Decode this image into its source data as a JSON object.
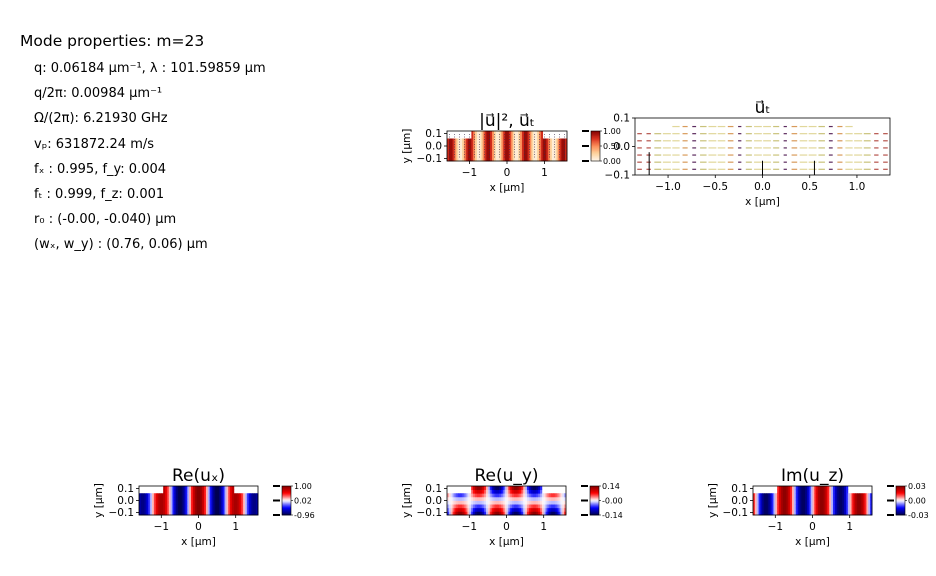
{
  "properties": {
    "title": "Mode properties: m=23",
    "lines": [
      "q: 0.06184 μm⁻¹, λ :  101.59859 μm",
      "q/2π: 0.00984 μm⁻¹",
      "Ω/(2π): 6.21930 GHz",
      "vₚ: 631872.24 m/s",
      "fₓ :  0.995, f_y: 0.004",
      "fₜ :  0.999, f_z: 0.001",
      "r₀ :  (-0.00, -0.040) μm",
      "(wₓ, w_y) :  (0.76, 0.06) μm"
    ]
  },
  "chart_data": [
    {
      "type": "heatmap",
      "title": "|u⃗|²,  u⃗ₜ",
      "xlabel": "x [μm]",
      "ylabel": "y [μm]",
      "xlim": [
        -1.6,
        1.6
      ],
      "ylim": [
        -0.12,
        0.12
      ],
      "xticks": [
        -1,
        0,
        1
      ],
      "yticks": [
        0.1,
        0.0,
        -0.1
      ],
      "xtick_labels": [
        "−1",
        "0",
        "1"
      ],
      "ytick_labels": [
        "0.1",
        "0.0",
        "−0.1"
      ],
      "colormap": "OrRd",
      "colorbar_ticks": [
        "1.00",
        "0.50",
        "0.00"
      ],
      "colorbar_range": [
        0.0,
        1.0
      ],
      "overlay": "quiver"
    },
    {
      "type": "scatter",
      "title": "u⃗ₜ",
      "xlabel": "x [μm]",
      "xlim": [
        -1.35,
        1.35
      ],
      "ylim": [
        -0.1,
        0.1
      ],
      "xticks": [
        -1.0,
        -0.5,
        0.0,
        0.5,
        1.0
      ],
      "yticks": [
        0.1,
        0.0,
        -0.1
      ],
      "xtick_labels": [
        "−1.0",
        "−0.5",
        "0.0",
        "0.5",
        "1.0"
      ],
      "ytick_labels": [
        "0.1",
        "0.0",
        "−0.1"
      ],
      "overlay": "quiver"
    },
    {
      "type": "heatmap",
      "title": "Re(uₓ)",
      "xlabel": "x [μm]",
      "ylabel": "y [μm]",
      "xlim": [
        -1.6,
        1.6
      ],
      "ylim": [
        -0.12,
        0.12
      ],
      "xticks": [
        -1,
        0,
        1
      ],
      "yticks": [
        0.1,
        0.0,
        -0.1
      ],
      "xtick_labels": [
        "−1",
        "0",
        "1"
      ],
      "ytick_labels": [
        "0.1",
        "0.0",
        "−0.1"
      ],
      "colormap": "seismic",
      "colorbar_ticks": [
        "1.00",
        "0.02",
        "-0.96"
      ],
      "colorbar_range": [
        -0.96,
        1.0
      ]
    },
    {
      "type": "heatmap",
      "title": "Re(u_y)",
      "xlabel": "x [μm]",
      "ylabel": "y [μm]",
      "xlim": [
        -1.6,
        1.6
      ],
      "ylim": [
        -0.12,
        0.12
      ],
      "xticks": [
        -1,
        0,
        1
      ],
      "yticks": [
        0.1,
        0.0,
        -0.1
      ],
      "xtick_labels": [
        "−1",
        "0",
        "1"
      ],
      "ytick_labels": [
        "0.1",
        "0.0",
        "−0.1"
      ],
      "colormap": "seismic",
      "colorbar_ticks": [
        "0.14",
        "-0.00",
        "-0.14"
      ],
      "colorbar_range": [
        -0.14,
        0.14
      ]
    },
    {
      "type": "heatmap",
      "title": "Im(u_z)",
      "xlabel": "x [μm]",
      "ylabel": "y [μm]",
      "xlim": [
        -1.6,
        1.6
      ],
      "ylim": [
        -0.12,
        0.12
      ],
      "xticks": [
        -1,
        0,
        1
      ],
      "yticks": [
        0.1,
        0.0,
        -0.1
      ],
      "xtick_labels": [
        "−1",
        "0",
        "1"
      ],
      "ytick_labels": [
        "0.1",
        "0.0",
        "−0.1"
      ],
      "colormap": "seismic",
      "colorbar_ticks": [
        "0.03",
        "0.00",
        "-0.03"
      ],
      "colorbar_range": [
        -0.03,
        0.03
      ]
    }
  ]
}
